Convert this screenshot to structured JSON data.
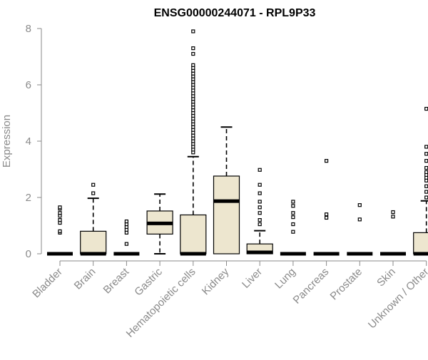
{
  "chart_data": {
    "type": "boxplot",
    "title": "ENSG00000244071 - RPL9P33",
    "ylabel": "Expression",
    "xlabel": "",
    "ylim": [
      0,
      8
    ],
    "yticks": [
      0,
      2,
      4,
      6,
      8
    ],
    "grid": false,
    "legend": "none",
    "colors": {
      "box_fill": "#ede6cf",
      "box_stroke": "#000000",
      "axis": "#8a8a8a",
      "median": "#000000"
    },
    "categories": [
      "Bladder",
      "Brain",
      "Breast",
      "Gastric",
      "Hematopoietic cells",
      "Kidney",
      "Liver",
      "Lung",
      "Pancreas",
      "Prostate",
      "Skin",
      "Unknown / Other"
    ],
    "boxes": [
      {
        "category": "Bladder",
        "q1": 0,
        "median": 0,
        "q3": 0,
        "whisker_low": 0,
        "whisker_high": 0,
        "outliers": [
          0.75,
          0.8,
          1.1,
          1.2,
          1.35,
          1.45,
          1.6,
          1.65
        ]
      },
      {
        "category": "Brain",
        "q1": 0,
        "median": 0,
        "q3": 0.8,
        "whisker_low": 0,
        "whisker_high": 1.97,
        "outliers": [
          2.15,
          2.45
        ]
      },
      {
        "category": "Breast",
        "q1": 0,
        "median": 0,
        "q3": 0,
        "whisker_low": 0,
        "whisker_high": 0,
        "outliers": [
          0.35,
          0.75,
          0.85,
          0.95,
          1.05,
          1.15
        ]
      },
      {
        "category": "Gastric",
        "q1": 0.7,
        "median": 1.08,
        "q3": 1.52,
        "whisker_low": 0,
        "whisker_high": 2.12,
        "outliers": []
      },
      {
        "category": "Hematopoietic cells",
        "q1": 0,
        "median": 0,
        "q3": 1.38,
        "whisker_low": 0,
        "whisker_high": 3.45,
        "outliers": [
          3.6,
          3.7,
          3.8,
          3.9,
          4.0,
          4.1,
          4.2,
          4.3,
          4.4,
          4.5,
          4.6,
          4.7,
          4.8,
          4.9,
          5.0,
          5.1,
          5.2,
          5.3,
          5.4,
          5.5,
          5.6,
          5.7,
          5.8,
          5.9,
          6.0,
          6.1,
          6.2,
          6.3,
          6.4,
          6.5,
          6.6,
          6.7,
          7.1,
          7.3,
          7.9
        ]
      },
      {
        "category": "Kidney",
        "q1": 0,
        "median": 1.87,
        "q3": 2.76,
        "whisker_low": 0,
        "whisker_high": 4.5,
        "outliers": []
      },
      {
        "category": "Liver",
        "q1": 0,
        "median": 0.05,
        "q3": 0.35,
        "whisker_low": 0,
        "whisker_high": 0.82,
        "outliers": [
          1.05,
          1.2,
          1.45,
          1.65,
          1.85,
          2.15,
          2.45,
          2.98
        ]
      },
      {
        "category": "Lung",
        "q1": 0,
        "median": 0,
        "q3": 0,
        "whisker_low": 0,
        "whisker_high": 0,
        "outliers": [
          0.78,
          1.05,
          1.3,
          1.45,
          1.7,
          1.85
        ]
      },
      {
        "category": "Pancreas",
        "q1": 0,
        "median": 0,
        "q3": 0,
        "whisker_low": 0,
        "whisker_high": 0,
        "outliers": [
          1.28,
          1.4,
          3.3
        ]
      },
      {
        "category": "Prostate",
        "q1": 0,
        "median": 0,
        "q3": 0,
        "whisker_low": 0,
        "whisker_high": 0,
        "outliers": [
          1.22,
          1.73
        ]
      },
      {
        "category": "Skin",
        "q1": 0,
        "median": 0,
        "q3": 0,
        "whisker_low": 0,
        "whisker_high": 0,
        "outliers": [
          1.32,
          1.48
        ]
      },
      {
        "category": "Unknown / Other",
        "q1": 0,
        "median": 0,
        "q3": 0.75,
        "whisker_low": 0,
        "whisker_high": 1.88,
        "outliers": [
          2.0,
          2.2,
          2.4,
          2.6,
          2.7,
          2.8,
          2.9,
          3.05,
          3.3,
          3.55,
          3.8,
          5.15
        ]
      }
    ]
  }
}
